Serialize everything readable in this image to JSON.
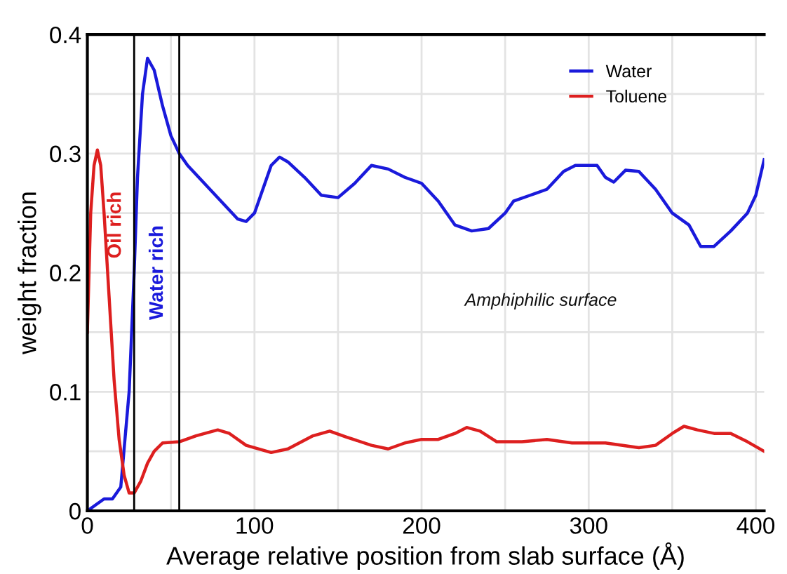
{
  "chart_data": {
    "type": "line",
    "xlabel": "Average relative position from slab surface (Å)",
    "ylabel": "weight fraction",
    "xlim": [
      0,
      405
    ],
    "ylim": [
      0,
      0.4
    ],
    "xticks": [
      0,
      {
        "value": 50,
        "label": null
      },
      100,
      {
        "value": 150,
        "label": null
      },
      200,
      {
        "value": 250,
        "label": null
      },
      300,
      {
        "value": 350,
        "label": null
      },
      400
    ],
    "yticks": [
      0,
      {
        "value": 0.05,
        "label": null
      },
      0.1,
      {
        "value": 0.15,
        "label": null
      },
      0.2,
      {
        "value": 0.25,
        "label": null
      },
      0.3,
      {
        "value": 0.35,
        "label": null
      },
      0.4
    ],
    "grid": true,
    "legend": "top right",
    "line_style": "solid",
    "marker": "none",
    "series": [
      {
        "name": "Water",
        "color": "#1a1adb",
        "x": [
          0,
          5,
          10,
          15,
          20,
          25,
          28,
          30,
          33,
          36,
          40,
          45,
          50,
          55,
          60,
          70,
          80,
          90,
          95,
          100,
          105,
          110,
          115,
          120,
          130,
          140,
          150,
          160,
          170,
          180,
          190,
          200,
          210,
          220,
          230,
          240,
          250,
          255,
          265,
          275,
          285,
          292,
          305,
          310,
          315,
          322,
          330,
          340,
          350,
          360,
          367,
          375,
          385,
          395,
          400,
          405
        ],
        "values": [
          0,
          0.005,
          0.01,
          0.01,
          0.02,
          0.1,
          0.2,
          0.28,
          0.35,
          0.38,
          0.37,
          0.34,
          0.315,
          0.3,
          0.29,
          0.275,
          0.26,
          0.245,
          0.243,
          0.25,
          0.27,
          0.29,
          0.297,
          0.293,
          0.28,
          0.265,
          0.263,
          0.275,
          0.29,
          0.287,
          0.28,
          0.275,
          0.26,
          0.24,
          0.235,
          0.237,
          0.25,
          0.26,
          0.265,
          0.27,
          0.285,
          0.29,
          0.29,
          0.28,
          0.276,
          0.286,
          0.285,
          0.27,
          0.25,
          0.24,
          0.222,
          0.222,
          0.235,
          0.25,
          0.265,
          0.295
        ]
      },
      {
        "name": "Toluene",
        "color": "#dd1f1f",
        "x": [
          0,
          2,
          4,
          6,
          8,
          10,
          13,
          16,
          19,
          22,
          25,
          28,
          32,
          36,
          40,
          45,
          55,
          65,
          78,
          85,
          95,
          110,
          120,
          135,
          145,
          155,
          170,
          180,
          190,
          200,
          210,
          220,
          227,
          235,
          245,
          260,
          275,
          290,
          310,
          330,
          340,
          350,
          357,
          365,
          375,
          385,
          395,
          405
        ],
        "values": [
          0.15,
          0.25,
          0.29,
          0.303,
          0.29,
          0.25,
          0.18,
          0.11,
          0.06,
          0.03,
          0.015,
          0.015,
          0.025,
          0.04,
          0.05,
          0.057,
          0.058,
          0.063,
          0.068,
          0.065,
          0.055,
          0.049,
          0.052,
          0.063,
          0.067,
          0.062,
          0.055,
          0.052,
          0.057,
          0.06,
          0.06,
          0.065,
          0.07,
          0.067,
          0.058,
          0.058,
          0.06,
          0.057,
          0.057,
          0.053,
          0.055,
          0.065,
          0.071,
          0.068,
          0.065,
          0.065,
          0.058,
          0.05
        ]
      }
    ],
    "ref_lines": [
      {
        "axis": "x",
        "value": 28,
        "color": "#000000"
      },
      {
        "axis": "x",
        "value": 55,
        "color": "#000000"
      }
    ],
    "annotations": [
      "Oil rich",
      "Water rich",
      "Amphiphilic surface"
    ]
  }
}
